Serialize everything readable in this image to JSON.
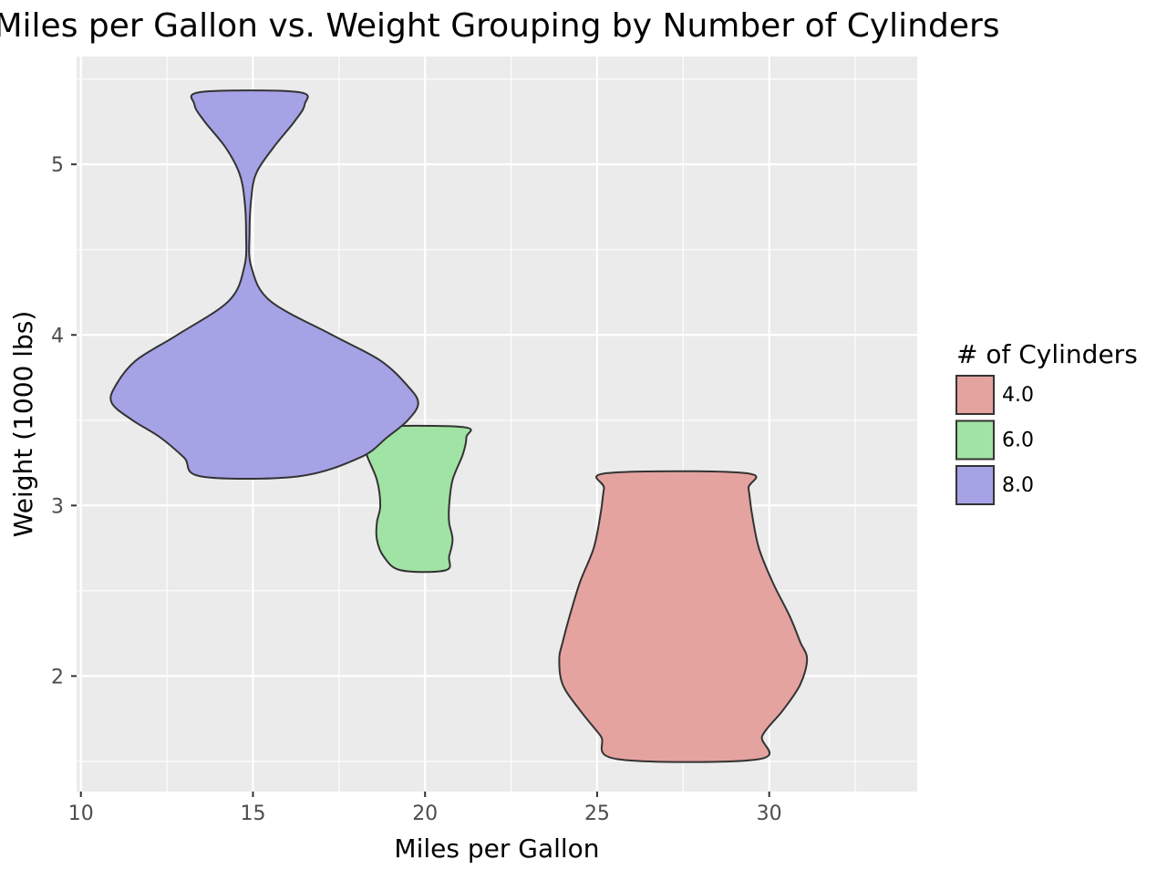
{
  "chart_data": {
    "type": "violin",
    "title": "Miles per Gallon vs. Weight Grouping by Number of Cylinders",
    "xlabel": "Miles per Gallon",
    "ylabel": "Weight (1000 lbs)",
    "xlim": [
      9.875,
      34.3
    ],
    "ylim": [
      1.323,
      5.632
    ],
    "x_ticks": [
      10,
      15,
      20,
      25,
      30
    ],
    "x_tick_labels": [
      "10",
      "15",
      "20",
      "25",
      "30"
    ],
    "y_ticks": [
      2,
      3,
      4,
      5
    ],
    "y_tick_labels": [
      "2",
      "3",
      "4",
      "5"
    ],
    "grid": true,
    "background": "#EBEBEB",
    "legend": {
      "title": "# of Cylinders",
      "placement": "right"
    },
    "series": [
      {
        "name": "4.0",
        "color": "#E5A3A0",
        "profile": [
          {
            "weight": 3.19,
            "mpg_min": 25.3,
            "mpg_max": 29.3
          },
          {
            "weight": 3.1,
            "mpg_min": 25.2,
            "mpg_max": 29.4
          },
          {
            "weight": 2.95,
            "mpg_min": 25.1,
            "mpg_max": 29.5
          },
          {
            "weight": 2.75,
            "mpg_min": 24.9,
            "mpg_max": 29.7
          },
          {
            "weight": 2.55,
            "mpg_min": 24.5,
            "mpg_max": 30.1
          },
          {
            "weight": 2.35,
            "mpg_min": 24.2,
            "mpg_max": 30.6
          },
          {
            "weight": 2.2,
            "mpg_min": 24.0,
            "mpg_max": 30.9
          },
          {
            "weight": 2.1,
            "mpg_min": 23.9,
            "mpg_max": 31.1
          },
          {
            "weight": 1.95,
            "mpg_min": 24.0,
            "mpg_max": 30.9
          },
          {
            "weight": 1.8,
            "mpg_min": 24.5,
            "mpg_max": 30.4
          },
          {
            "weight": 1.65,
            "mpg_min": 25.1,
            "mpg_max": 29.8
          },
          {
            "weight": 1.513,
            "mpg_min": 25.6,
            "mpg_max": 29.7
          }
        ]
      },
      {
        "name": "6.0",
        "color": "#A1E3A4",
        "profile": [
          {
            "weight": 3.46,
            "mpg_min": 18.4,
            "mpg_max": 21.1
          },
          {
            "weight": 3.4,
            "mpg_min": 18.2,
            "mpg_max": 21.2
          },
          {
            "weight": 3.3,
            "mpg_min": 18.3,
            "mpg_max": 21.1
          },
          {
            "weight": 3.15,
            "mpg_min": 18.6,
            "mpg_max": 20.8
          },
          {
            "weight": 3.0,
            "mpg_min": 18.7,
            "mpg_max": 20.7
          },
          {
            "weight": 2.9,
            "mpg_min": 18.6,
            "mpg_max": 20.7
          },
          {
            "weight": 2.8,
            "mpg_min": 18.6,
            "mpg_max": 20.8
          },
          {
            "weight": 2.7,
            "mpg_min": 18.8,
            "mpg_max": 20.7
          },
          {
            "weight": 2.62,
            "mpg_min": 19.3,
            "mpg_max": 20.6
          }
        ]
      },
      {
        "name": "8.0",
        "color": "#A6A2E6",
        "profile": [
          {
            "weight": 5.424,
            "mpg_min": 13.5,
            "mpg_max": 16.3
          },
          {
            "weight": 5.35,
            "mpg_min": 13.3,
            "mpg_max": 16.5
          },
          {
            "weight": 5.25,
            "mpg_min": 13.6,
            "mpg_max": 16.2
          },
          {
            "weight": 5.1,
            "mpg_min": 14.2,
            "mpg_max": 15.6
          },
          {
            "weight": 4.95,
            "mpg_min": 14.6,
            "mpg_max": 15.1
          },
          {
            "weight": 4.8,
            "mpg_min": 14.75,
            "mpg_max": 14.95
          },
          {
            "weight": 4.6,
            "mpg_min": 14.8,
            "mpg_max": 14.9
          },
          {
            "weight": 4.4,
            "mpg_min": 14.75,
            "mpg_max": 14.95
          },
          {
            "weight": 4.2,
            "mpg_min": 14.3,
            "mpg_max": 15.5
          },
          {
            "weight": 4.0,
            "mpg_min": 12.8,
            "mpg_max": 17.3
          },
          {
            "weight": 3.85,
            "mpg_min": 11.6,
            "mpg_max": 18.7
          },
          {
            "weight": 3.7,
            "mpg_min": 11.0,
            "mpg_max": 19.5
          },
          {
            "weight": 3.6,
            "mpg_min": 10.9,
            "mpg_max": 19.8
          },
          {
            "weight": 3.5,
            "mpg_min": 11.5,
            "mpg_max": 19.5
          },
          {
            "weight": 3.4,
            "mpg_min": 12.3,
            "mpg_max": 18.9
          },
          {
            "weight": 3.28,
            "mpg_min": 13.0,
            "mpg_max": 18.1
          },
          {
            "weight": 3.17,
            "mpg_min": 13.5,
            "mpg_max": 16.3
          }
        ]
      }
    ]
  }
}
